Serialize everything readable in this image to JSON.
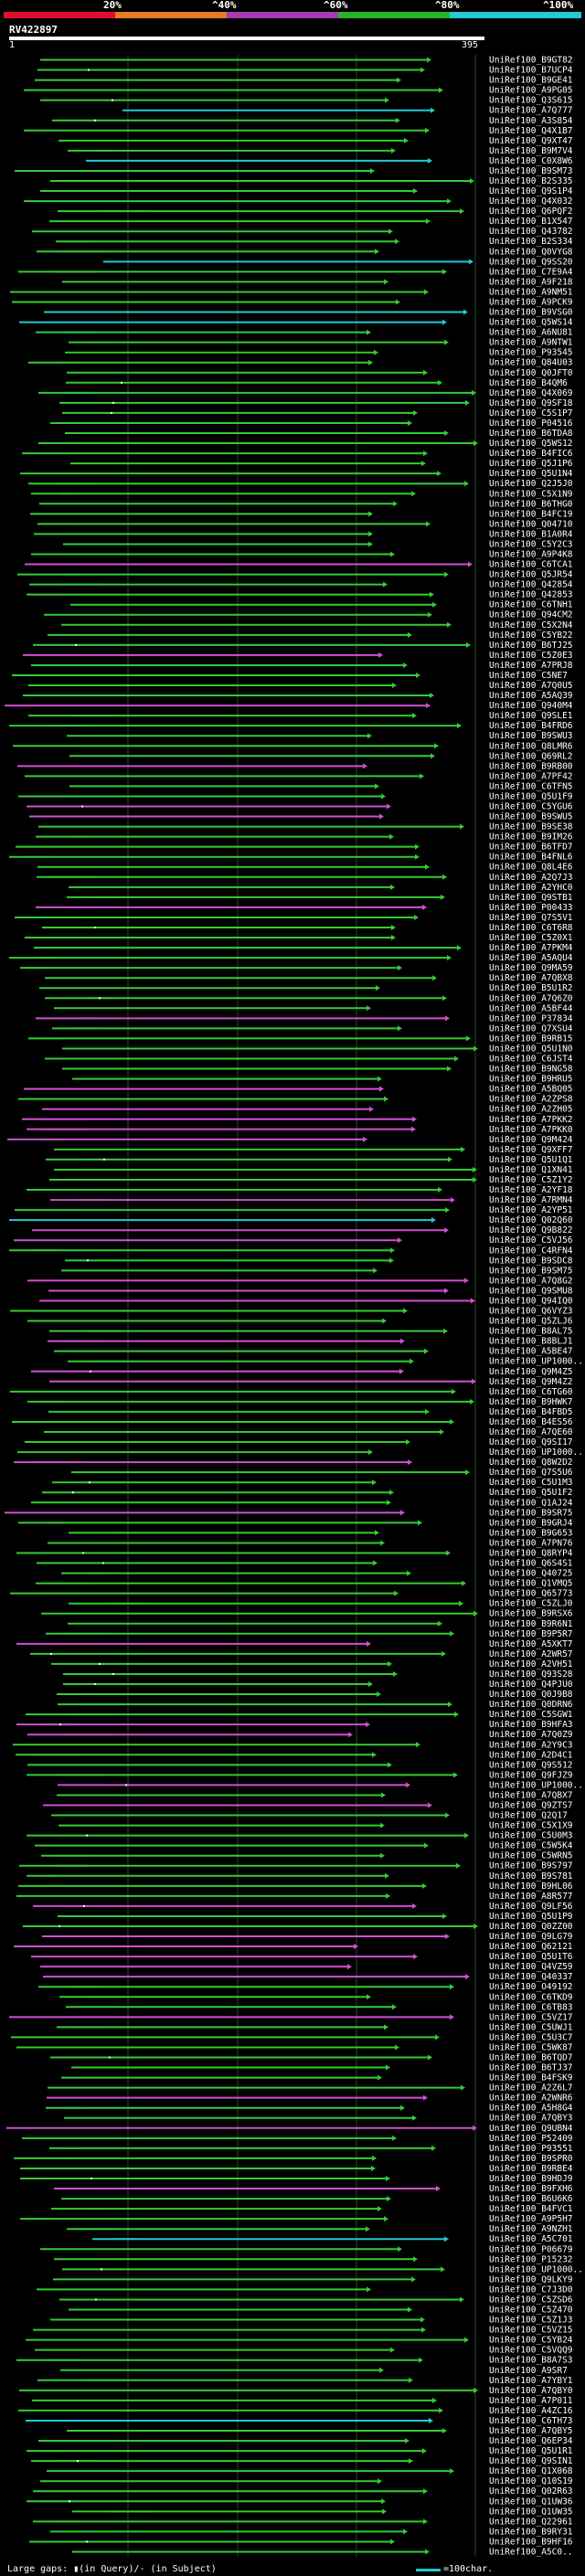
{
  "scale": {
    "labels": [
      "20%",
      "^40%",
      "^60%",
      "^80%",
      "^100%"
    ],
    "colors": [
      "#e0102b",
      "#e87c1e",
      "#a53bb3",
      "#27b327",
      "#23c9d4"
    ]
  },
  "query": {
    "id": "RV422897",
    "start": "1",
    "end": "395"
  },
  "colors": {
    "green": "#33cc33",
    "magenta": "#d14fd1",
    "cyan": "#23c9d4",
    "dark_gap": "#1a5a1a",
    "guide": "#234d23"
  },
  "hits": [
    {
      "label": "UniRef100_B9GT82",
      "c": "g"
    },
    {
      "label": "UniRef100_B7UCP4",
      "c": "g"
    },
    {
      "label": "UniRef100_B9GE41",
      "c": "g"
    },
    {
      "label": "UniRef100_A9PG05",
      "c": "g"
    },
    {
      "label": "UniRef100_Q3S615",
      "c": "g"
    },
    {
      "label": "UniRef100_A7Q777",
      "c": "c"
    },
    {
      "label": "UniRef100_A3S854",
      "c": "g"
    },
    {
      "label": "UniRef100_Q4X1B7",
      "c": "g"
    },
    {
      "label": "UniRef100_Q9XT47",
      "c": "g"
    },
    {
      "label": "UniRef100_B9M7V4",
      "c": "g"
    },
    {
      "label": "UniRef100_C0X8W6",
      "c": "c"
    },
    {
      "label": "UniRef100_B9SM73",
      "c": "g"
    },
    {
      "label": "UniRef100_B2S335",
      "c": "g"
    },
    {
      "label": "UniRef100_Q9S1P4",
      "c": "g"
    },
    {
      "label": "UniRef100_Q4X032",
      "c": "g"
    },
    {
      "label": "UniRef100_Q6PQF2",
      "c": "g"
    },
    {
      "label": "UniRef100_B1X547",
      "c": "g"
    },
    {
      "label": "UniRef100_Q43782",
      "c": "g"
    },
    {
      "label": "UniRef100_B2S334",
      "c": "g"
    },
    {
      "label": "UniRef100_Q0VYG8",
      "c": "g"
    },
    {
      "label": "UniRef100_Q9SS20",
      "c": "c"
    },
    {
      "label": "UniRef100_C7E9A4",
      "c": "g"
    },
    {
      "label": "UniRef100_A9F218",
      "c": "g"
    },
    {
      "label": "UniRef100_A9NM51",
      "c": "g"
    },
    {
      "label": "UniRef100_A9PCK9",
      "c": "g"
    },
    {
      "label": "UniRef100_B9VSG0",
      "c": "c"
    },
    {
      "label": "UniRef100_Q5WS14",
      "c": "c"
    },
    {
      "label": "UniRef100_A6NU81",
      "c": "g"
    },
    {
      "label": "UniRef100_A9NTW1",
      "c": "g"
    },
    {
      "label": "UniRef100_P93545",
      "c": "g"
    },
    {
      "label": "UniRef100_Q84U03",
      "c": "g"
    },
    {
      "label": "UniRef100_Q0JFT0",
      "c": "g"
    },
    {
      "label": "UniRef100_B4QM6",
      "c": "g"
    },
    {
      "label": "UniRef100_Q4X069",
      "c": "g"
    },
    {
      "label": "UniRef100_Q9SF18",
      "c": "g"
    },
    {
      "label": "UniRef100_C5S1P7",
      "c": "g"
    },
    {
      "label": "UniRef100_P04516",
      "c": "g"
    },
    {
      "label": "UniRef100_B6TDA8",
      "c": "g"
    },
    {
      "label": "UniRef100_Q5WS12",
      "c": "g"
    },
    {
      "label": "UniRef100_B4FIC6",
      "c": "g"
    },
    {
      "label": "UniRef100_Q5J1P6",
      "c": "g"
    },
    {
      "label": "UniRef100_Q5U1N4",
      "c": "g"
    },
    {
      "label": "UniRef100_Q2J5J0",
      "c": "g"
    },
    {
      "label": "UniRef100_C5X1N9",
      "c": "g"
    },
    {
      "label": "UniRef100_B6THG0",
      "c": "g"
    },
    {
      "label": "UniRef100_B4FC19",
      "c": "g"
    },
    {
      "label": "UniRef100_Q04710",
      "c": "g"
    },
    {
      "label": "UniRef100_B1A0R4",
      "c": "g"
    },
    {
      "label": "UniRef100_C5Y2C3",
      "c": "g"
    },
    {
      "label": "UniRef100_A9P4K8",
      "c": "g"
    },
    {
      "label": "UniRef100_C6TCA1",
      "c": "m"
    },
    {
      "label": "UniRef100_Q5JR54",
      "c": "g"
    },
    {
      "label": "UniRef100_Q42854",
      "c": "g"
    },
    {
      "label": "UniRef100_Q42853",
      "c": "g"
    },
    {
      "label": "UniRef100_C6TNH1",
      "c": "g"
    },
    {
      "label": "UniRef100_Q94CM2",
      "c": "g"
    },
    {
      "label": "UniRef100_C5X2N4",
      "c": "g"
    },
    {
      "label": "UniRef100_C5YB22",
      "c": "g"
    },
    {
      "label": "UniRef100_B6TJ25",
      "c": "g"
    },
    {
      "label": "UniRef100_C5Z0E3",
      "c": "m"
    },
    {
      "label": "UniRef100_A7PRJ8",
      "c": "g"
    },
    {
      "label": "UniRef100_C5NE7",
      "c": "g"
    },
    {
      "label": "UniRef100_A7Q0U5",
      "c": "g"
    },
    {
      "label": "UniRef100_A5AQ39",
      "c": "g"
    },
    {
      "label": "UniRef100_Q940M4",
      "c": "m"
    },
    {
      "label": "UniRef100_Q9SLE1",
      "c": "g"
    },
    {
      "label": "UniRef100_B4FRD6",
      "c": "g"
    },
    {
      "label": "UniRef100_B9SWU3",
      "c": "g"
    },
    {
      "label": "UniRef100_Q8LMR6",
      "c": "g"
    },
    {
      "label": "UniRef100_Q69RL2",
      "c": "g"
    },
    {
      "label": "UniRef100_B9RB00",
      "c": "m"
    },
    {
      "label": "UniRef100_A7PF42",
      "c": "g"
    },
    {
      "label": "UniRef100_C6TFN5",
      "c": "g"
    },
    {
      "label": "UniRef100_Q5U1F9",
      "c": "g"
    },
    {
      "label": "UniRef100_C5YGU6",
      "c": "m"
    },
    {
      "label": "UniRef100_B9SWU5",
      "c": "m"
    },
    {
      "label": "UniRef100_B9SE38",
      "c": "g"
    },
    {
      "label": "UniRef100_B9IM26",
      "c": "g"
    },
    {
      "label": "UniRef100_B6TFD7",
      "c": "g"
    },
    {
      "label": "UniRef100_B4FNL6",
      "c": "g"
    },
    {
      "label": "UniRef100_Q8L4E6",
      "c": "g"
    },
    {
      "label": "UniRef100_A2Q7J3",
      "c": "g"
    },
    {
      "label": "UniRef100_A2YHC0",
      "c": "g"
    },
    {
      "label": "UniRef100_Q9STB1",
      "c": "g"
    },
    {
      "label": "UniRef100_P00433",
      "c": "m"
    },
    {
      "label": "UniRef100_Q7S5V1",
      "c": "g"
    },
    {
      "label": "UniRef100_C6T6R8",
      "c": "g"
    },
    {
      "label": "UniRef100_C5Z0X1",
      "c": "g"
    },
    {
      "label": "UniRef100_A7PKM4",
      "c": "g"
    },
    {
      "label": "UniRef100_A5AQU4",
      "c": "g"
    },
    {
      "label": "UniRef100_Q9MA59",
      "c": "g"
    },
    {
      "label": "UniRef100_A7QBX8",
      "c": "g"
    },
    {
      "label": "UniRef100_B5U1R2",
      "c": "g"
    },
    {
      "label": "UniRef100_A7Q6Z0",
      "c": "g"
    },
    {
      "label": "UniRef100_A5BF44",
      "c": "g"
    },
    {
      "label": "UniRef100_P37834",
      "c": "m"
    },
    {
      "label": "UniRef100_Q7XSU4",
      "c": "g"
    },
    {
      "label": "UniRef100_B9RB15",
      "c": "g"
    },
    {
      "label": "UniRef100_Q5U1N0",
      "c": "g"
    },
    {
      "label": "UniRef100_C6JST4",
      "c": "g"
    },
    {
      "label": "UniRef100_B9NG58",
      "c": "g"
    },
    {
      "label": "UniRef100_B9HRU5",
      "c": "g"
    },
    {
      "label": "UniRef100_A5BQ05",
      "c": "m"
    },
    {
      "label": "UniRef100_A2ZPS8",
      "c": "g"
    },
    {
      "label": "UniRef100_A2ZH05",
      "c": "m"
    },
    {
      "label": "UniRef100_A7PKK2",
      "c": "m"
    },
    {
      "label": "UniRef100_A7PKK0",
      "c": "m"
    },
    {
      "label": "UniRef100_Q9M424",
      "c": "m"
    },
    {
      "label": "UniRef100_Q9XFF7",
      "c": "g"
    },
    {
      "label": "UniRef100_Q5U1Q1",
      "c": "g"
    },
    {
      "label": "UniRef100_Q1XN41",
      "c": "g"
    },
    {
      "label": "UniRef100_C5Z1Y2",
      "c": "g"
    },
    {
      "label": "UniRef100_A2YF18",
      "c": "g"
    },
    {
      "label": "UniRef100_A7RMN4",
      "c": "m"
    },
    {
      "label": "UniRef100_A2YP51",
      "c": "g"
    },
    {
      "label": "UniRef100_Q02Q60",
      "c": "c"
    },
    {
      "label": "UniRef100_Q9B822",
      "c": "m"
    },
    {
      "label": "UniRef100_C5VJ56",
      "c": "m"
    },
    {
      "label": "UniRef100_C4RFN4",
      "c": "g"
    },
    {
      "label": "UniRef100_B9SDC8",
      "c": "g"
    },
    {
      "label": "UniRef100_B9SM75",
      "c": "g"
    },
    {
      "label": "UniRef100_A7Q8G2",
      "c": "m"
    },
    {
      "label": "UniRef100_Q9SMU8",
      "c": "m"
    },
    {
      "label": "UniRef100_Q94IQ0",
      "c": "m"
    },
    {
      "label": "UniRef100_Q6VYZ3",
      "c": "g"
    },
    {
      "label": "UniRef100_Q5ZLJ6",
      "c": "g"
    },
    {
      "label": "UniRef100_B8AL75",
      "c": "g"
    },
    {
      "label": "UniRef100_B8BLJ1",
      "c": "m"
    },
    {
      "label": "UniRef100_A5BE47",
      "c": "g"
    },
    {
      "label": "UniRef100_UP1000..",
      "c": "g"
    },
    {
      "label": "UniRef100_Q9M4Z5",
      "c": "m"
    },
    {
      "label": "UniRef100_Q9M4Z2",
      "c": "m"
    },
    {
      "label": "UniRef100_C6TG60",
      "c": "g"
    },
    {
      "label": "UniRef100_B9HWK7",
      "c": "g"
    },
    {
      "label": "UniRef100_B4FBD5",
      "c": "g"
    },
    {
      "label": "UniRef100_B4ES56",
      "c": "g"
    },
    {
      "label": "UniRef100_A7QE60",
      "c": "g"
    },
    {
      "label": "UniRef100_Q9SI17",
      "c": "g"
    },
    {
      "label": "UniRef100_UP1000..",
      "c": "g"
    },
    {
      "label": "UniRef100_Q8W2D2",
      "c": "m"
    },
    {
      "label": "UniRef100_Q7S5U6",
      "c": "g"
    },
    {
      "label": "UniRef100_C5U1M3",
      "c": "g"
    },
    {
      "label": "UniRef100_Q5U1F2",
      "c": "g"
    },
    {
      "label": "UniRef100_Q1AJ24",
      "c": "g"
    },
    {
      "label": "UniRef100_B9SR75",
      "c": "m"
    },
    {
      "label": "UniRef100_B9GRJ4",
      "c": "g"
    },
    {
      "label": "UniRef100_B9G653",
      "c": "g"
    },
    {
      "label": "UniRef100_A7PN76",
      "c": "g"
    },
    {
      "label": "UniRef100_Q8RYP4",
      "c": "g"
    },
    {
      "label": "UniRef100_Q6S4S1",
      "c": "g"
    },
    {
      "label": "UniRef100_Q40725",
      "c": "g"
    },
    {
      "label": "UniRef100_Q1VMQ5",
      "c": "g"
    },
    {
      "label": "UniRef100_Q65773",
      "c": "g"
    },
    {
      "label": "UniRef100_C5ZLJ0",
      "c": "g"
    },
    {
      "label": "UniRef100_B9RSX6",
      "c": "g"
    },
    {
      "label": "UniRef100_B9R6N1",
      "c": "g"
    },
    {
      "label": "UniRef100_B9P5R7",
      "c": "g"
    },
    {
      "label": "UniRef100_A5XKT7",
      "c": "m"
    },
    {
      "label": "UniRef100_A2WR57",
      "c": "g"
    },
    {
      "label": "UniRef100_A2VH51",
      "c": "g"
    },
    {
      "label": "UniRef100_Q93S28",
      "c": "g"
    },
    {
      "label": "UniRef100_Q4PJU0",
      "c": "g"
    },
    {
      "label": "UniRef100_Q0J9B8",
      "c": "g"
    },
    {
      "label": "UniRef100_Q0DRN6",
      "c": "g"
    },
    {
      "label": "UniRef100_C5SGW1",
      "c": "g"
    },
    {
      "label": "UniRef100_B9HFA3",
      "c": "m"
    },
    {
      "label": "UniRef100_A7Q0Z9",
      "c": "m"
    },
    {
      "label": "UniRef100_A2Y9C3",
      "c": "g"
    },
    {
      "label": "UniRef100_A2D4C1",
      "c": "g"
    },
    {
      "label": "UniRef100_Q9S512",
      "c": "g"
    },
    {
      "label": "UniRef100_Q9FJZ9",
      "c": "g"
    },
    {
      "label": "UniRef100_UP1000..",
      "c": "m"
    },
    {
      "label": "UniRef100_A7QBX7",
      "c": "g"
    },
    {
      "label": "UniRef100_Q9ZTS7",
      "c": "m"
    },
    {
      "label": "UniRef100_Q2Q17",
      "c": "g"
    },
    {
      "label": "UniRef100_C5X1X9",
      "c": "g"
    },
    {
      "label": "UniRef100_C5U0M3",
      "c": "g"
    },
    {
      "label": "UniRef100_C5W5K4",
      "c": "g"
    },
    {
      "label": "UniRef100_C5WRN5",
      "c": "g"
    },
    {
      "label": "UniRef100_B9S797",
      "c": "g"
    },
    {
      "label": "UniRef100_B9S781",
      "c": "g"
    },
    {
      "label": "UniRef100_B9HL06",
      "c": "g"
    },
    {
      "label": "UniRef100_A8R577",
      "c": "g"
    },
    {
      "label": "UniRef100_Q9LF56",
      "c": "m"
    },
    {
      "label": "UniRef100_Q5U1P9",
      "c": "g"
    },
    {
      "label": "UniRef100_Q0ZZ00",
      "c": "g"
    },
    {
      "label": "UniRef100_Q9LG79",
      "c": "m"
    },
    {
      "label": "UniRef100_Q62121",
      "c": "m"
    },
    {
      "label": "UniRef100_Q5U1T6",
      "c": "m"
    },
    {
      "label": "UniRef100_Q4VZ59",
      "c": "m"
    },
    {
      "label": "UniRef100_Q40337",
      "c": "m"
    },
    {
      "label": "UniRef100_O49192",
      "c": "g"
    },
    {
      "label": "UniRef100_C6TKD9",
      "c": "g"
    },
    {
      "label": "UniRef100_C6TB83",
      "c": "g"
    },
    {
      "label": "UniRef100_C5VZ17",
      "c": "m"
    },
    {
      "label": "UniRef100_C5UWJ1",
      "c": "g"
    },
    {
      "label": "UniRef100_C5U3C7",
      "c": "g"
    },
    {
      "label": "UniRef100_C5WK87",
      "c": "g"
    },
    {
      "label": "UniRef100_B6TQD7",
      "c": "g"
    },
    {
      "label": "UniRef100_B6TJ37",
      "c": "g"
    },
    {
      "label": "UniRef100_B4FSK9",
      "c": "g"
    },
    {
      "label": "UniRef100_A2Z6L7",
      "c": "g"
    },
    {
      "label": "UniRef100_A2WNR6",
      "c": "m"
    },
    {
      "label": "UniRef100_A5H8G4",
      "c": "g"
    },
    {
      "label": "UniRef100_A7QBY3",
      "c": "g"
    },
    {
      "label": "UniRef100_Q9UBN4",
      "c": "m"
    },
    {
      "label": "UniRef100_P52409",
      "c": "g"
    },
    {
      "label": "UniRef100_P93551",
      "c": "g"
    },
    {
      "label": "UniRef100_B9SPR0",
      "c": "g"
    },
    {
      "label": "UniRef100_B9RBE4",
      "c": "g"
    },
    {
      "label": "UniRef100_B9HDJ9",
      "c": "g"
    },
    {
      "label": "UniRef100_B9FXH6",
      "c": "m"
    },
    {
      "label": "UniRef100_B6U6K6",
      "c": "g"
    },
    {
      "label": "UniRef100_B4FVC1",
      "c": "g"
    },
    {
      "label": "UniRef100_A9P5H7",
      "c": "g"
    },
    {
      "label": "UniRef100_A9NZH1",
      "c": "g"
    },
    {
      "label": "UniRef100_A5C701",
      "c": "c"
    },
    {
      "label": "UniRef100_P06679",
      "c": "g"
    },
    {
      "label": "UniRef100_P15232",
      "c": "g"
    },
    {
      "label": "UniRef100_UP1000..",
      "c": "g"
    },
    {
      "label": "UniRef100_Q9LKY9",
      "c": "g"
    },
    {
      "label": "UniRef100_C7J3D0",
      "c": "g"
    },
    {
      "label": "UniRef100_C5ZSD6",
      "c": "g"
    },
    {
      "label": "UniRef100_C5Z470",
      "c": "g"
    },
    {
      "label": "UniRef100_C5Z1J3",
      "c": "g"
    },
    {
      "label": "UniRef100_C5VZ15",
      "c": "g"
    },
    {
      "label": "UniRef100_C5YB24",
      "c": "g"
    },
    {
      "label": "UniRef100_C5VQQ9",
      "c": "g"
    },
    {
      "label": "UniRef100_B8A7S3",
      "c": "g"
    },
    {
      "label": "UniRef100_A9SR7",
      "c": "g"
    },
    {
      "label": "UniRef100_A7YBY1",
      "c": "g"
    },
    {
      "label": "UniRef100_A7QBY0",
      "c": "g"
    },
    {
      "label": "UniRef100_A7P011",
      "c": "g"
    },
    {
      "label": "UniRef100_A4ZC16",
      "c": "g"
    },
    {
      "label": "UniRef100_C6TH73",
      "c": "c"
    },
    {
      "label": "UniRef100_A7QBY5",
      "c": "g"
    },
    {
      "label": "UniRef100_Q6EP34",
      "c": "g"
    },
    {
      "label": "UniRef100_Q5U1R1",
      "c": "g"
    },
    {
      "label": "UniRef100_Q9SIN1",
      "c": "g"
    },
    {
      "label": "UniRef100_Q1X068",
      "c": "g"
    },
    {
      "label": "UniRef100_Q10S19",
      "c": "g"
    },
    {
      "label": "UniRef100_Q02R63",
      "c": "g"
    },
    {
      "label": "UniRef100_Q1UW36",
      "c": "g"
    },
    {
      "label": "UniRef100_Q1UW35",
      "c": "g"
    },
    {
      "label": "UniRef100_Q22961",
      "c": "g"
    },
    {
      "label": "UniRef100_B9RY31",
      "c": "g"
    },
    {
      "label": "UniRef100_B9HF16",
      "c": "g"
    },
    {
      "label": "UniRef100_A5C0..",
      "c": "g"
    }
  ],
  "legend": {
    "text": "Large gaps: ▮(in Query)/- (in Subject)",
    "scale_text": "=100char."
  }
}
